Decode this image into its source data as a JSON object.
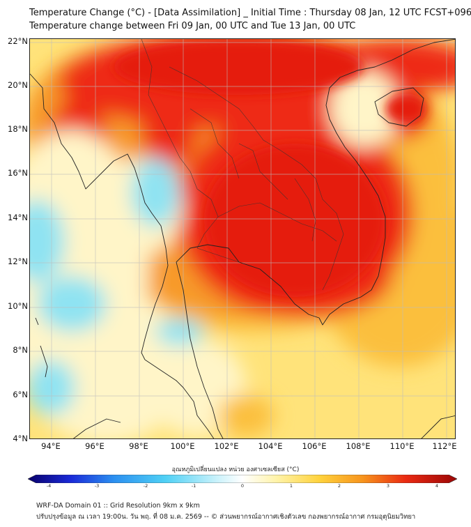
{
  "header": {
    "title_line1": "Temperature Change (°C) - [Data Assimilation] _ Initial Time : Thursday 08 Jan, 12 UTC FCST+096",
    "title_line2": "Temperature change between Fri 09 Jan, 00 UTC and Tue 13 Jan, 00 UTC"
  },
  "map": {
    "lat_labels": [
      "22°N",
      "20°N",
      "18°N",
      "16°N",
      "14°N",
      "12°N",
      "10°N",
      "8°N",
      "6°N",
      "4°N"
    ],
    "lon_labels": [
      "94°E",
      "96°E",
      "98°E",
      "100°E",
      "102°E",
      "104°E",
      "106°E",
      "108°E",
      "110°E",
      "112°E"
    ],
    "lon_range": [
      93,
      112.5
    ],
    "lat_range": [
      4,
      22.2
    ],
    "colors": {
      "ocean_base": "#ffe37a",
      "warm_mid": "#fbbf3e",
      "warm_orange": "#f79a2c",
      "hot_red": "#ee2c14",
      "deep_red": "#e51a0c",
      "pale": "#fff5c8",
      "cool_cyan": "#8fe3f2",
      "cool_blue": "#5fd4ee",
      "coast_line": "#222222",
      "grid_line": "#bdbdbd"
    }
  },
  "colorbar": {
    "label": "อุณหภูมิเปลี่ยนแปลง หน่วย องศาเซลเซียส (°C)",
    "ticks": [
      "-4",
      "-3",
      "-2",
      "-1",
      "0",
      "1",
      "2",
      "3",
      "4"
    ],
    "range": [
      -4,
      4
    ],
    "stops": [
      "#08006b",
      "#1a2ad8",
      "#2b8ff0",
      "#4fd0f5",
      "#c9f2fb",
      "#ffffff",
      "#fff3a8",
      "#ffd23c",
      "#f7941d",
      "#ea2a12",
      "#9b0606"
    ]
  },
  "footer": {
    "line1": "WRF-DA Domain 01 :: Grid Resolution 9km x 9km",
    "line2": "ปรับปรุงข้อมูล ณ เวลา 19:00น. วัน พฤ. ที่ 08 ม.ค. 2569 -- © ส่วนพยากรณ์อากาศเชิงตัวเลข กองพยากรณ์อากาศ กรมอุตุนิยมวิทยา"
  }
}
